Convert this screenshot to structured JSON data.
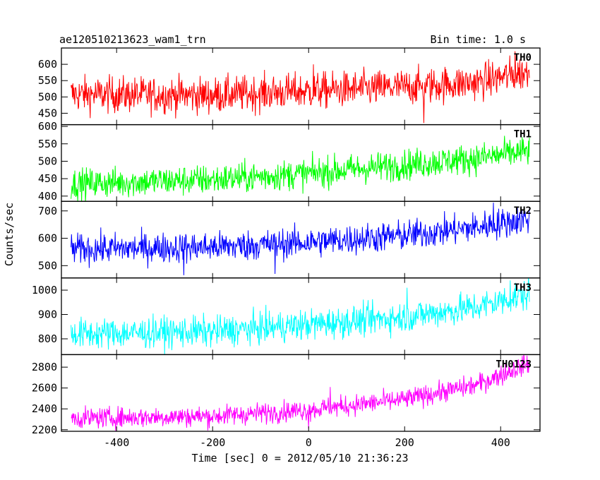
{
  "header": {
    "title": "ae120510213623_wam1_trn",
    "bin_time": "Bin time: 1.0 s"
  },
  "chart_data": {
    "type": "line",
    "title": "ae120510213623_wam1_trn",
    "xlabel": "Time [sec] 0 = 2012/05/10 21:36:23",
    "ylabel": "Counts/sec",
    "xlim": [
      -515,
      482
    ],
    "xticks": [
      -400,
      -200,
      0,
      200,
      400
    ],
    "x_range": [
      -495,
      460
    ],
    "panels": [
      {
        "name": "TH0",
        "color": "#ff0000",
        "ylim": [
          415,
          650
        ],
        "yticks": [
          450,
          500,
          550,
          600
        ],
        "trend": [
          [
            -495,
            508
          ],
          [
            -200,
            505
          ],
          [
            0,
            518
          ],
          [
            200,
            530
          ],
          [
            350,
            545
          ],
          [
            460,
            578
          ]
        ],
        "noise": 28,
        "spikes": [
          [
            10,
            600
          ],
          [
            240,
            420
          ],
          [
            430,
            640
          ]
        ]
      },
      {
        "name": "TH1",
        "color": "#00ff00",
        "ylim": [
          385,
          605
        ],
        "yticks": [
          400,
          450,
          500,
          550,
          600
        ],
        "trend": [
          [
            -495,
            435
          ],
          [
            -200,
            447
          ],
          [
            0,
            465
          ],
          [
            200,
            490
          ],
          [
            350,
            508
          ],
          [
            460,
            530
          ]
        ],
        "noise": 22,
        "spikes": []
      },
      {
        "name": "TH2",
        "color": "#0000ff",
        "ylim": [
          455,
          735
        ],
        "yticks": [
          500,
          600,
          700
        ],
        "trend": [
          [
            -495,
            560
          ],
          [
            -200,
            568
          ],
          [
            0,
            585
          ],
          [
            200,
            610
          ],
          [
            350,
            640
          ],
          [
            460,
            672
          ]
        ],
        "noise": 28,
        "spikes": [
          [
            -260,
            465
          ],
          [
            -70,
            470
          ],
          [
            385,
            730
          ]
        ]
      },
      {
        "name": "TH3",
        "color": "#00ffff",
        "ylim": [
          735,
          1050
        ],
        "yticks": [
          800,
          900,
          1000
        ],
        "trend": [
          [
            -495,
            820
          ],
          [
            -200,
            830
          ],
          [
            0,
            858
          ],
          [
            200,
            890
          ],
          [
            350,
            930
          ],
          [
            460,
            985
          ]
        ],
        "noise": 32,
        "spikes": [
          [
            205,
            1010
          ],
          [
            420,
            1040
          ]
        ]
      },
      {
        "name": "TH0123",
        "color": "#ff00ff",
        "ylim": [
          2185,
          2920
        ],
        "yticks": [
          2200,
          2400,
          2600,
          2800
        ],
        "trend": [
          [
            -495,
            2310
          ],
          [
            -200,
            2330
          ],
          [
            0,
            2390
          ],
          [
            200,
            2490
          ],
          [
            350,
            2630
          ],
          [
            460,
            2840
          ]
        ],
        "noise": 50,
        "spikes": [
          [
            0,
            2210
          ],
          [
            45,
            2610
          ]
        ]
      }
    ]
  }
}
